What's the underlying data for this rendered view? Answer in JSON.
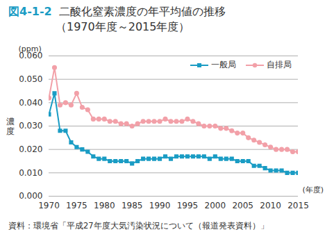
{
  "chart_data": {
    "type": "line",
    "figure_number": "図4-1-2",
    "title": "二酸化窒素濃度の年平均値の推移",
    "subtitle": "（1970年度～2015年度）",
    "y_unit": "(ppm)",
    "y_label": "濃度",
    "x_label": "(年度)",
    "source": "資料：環境省「平成27年度大気汚染状況について（報道発表資料）」",
    "x": [
      1970,
      1971,
      1972,
      1973,
      1974,
      1975,
      1976,
      1977,
      1978,
      1979,
      1980,
      1981,
      1982,
      1983,
      1984,
      1985,
      1986,
      1987,
      1988,
      1989,
      1990,
      1991,
      1992,
      1993,
      1994,
      1995,
      1996,
      1997,
      1998,
      1999,
      2000,
      2001,
      2002,
      2003,
      2004,
      2005,
      2006,
      2007,
      2008,
      2009,
      2010,
      2011,
      2012,
      2013,
      2014,
      2015
    ],
    "series": [
      {
        "name": "一般局",
        "color": "#1a9cc4",
        "marker": "square",
        "values": [
          0.035,
          0.044,
          0.028,
          0.028,
          0.023,
          0.021,
          0.02,
          0.019,
          0.017,
          0.016,
          0.016,
          0.015,
          0.015,
          0.015,
          0.015,
          0.014,
          0.015,
          0.016,
          0.016,
          0.016,
          0.016,
          0.017,
          0.016,
          0.017,
          0.017,
          0.017,
          0.017,
          0.017,
          0.017,
          0.016,
          0.017,
          0.016,
          0.016,
          0.016,
          0.015,
          0.015,
          0.015,
          0.013,
          0.013,
          0.012,
          0.011,
          0.011,
          0.011,
          0.01,
          0.01,
          0.01
        ]
      },
      {
        "name": "自排局",
        "color": "#f2a0a8",
        "marker": "circle",
        "values": [
          0.042,
          0.055,
          0.039,
          0.04,
          0.039,
          0.044,
          0.038,
          0.037,
          0.033,
          0.033,
          0.033,
          0.032,
          0.032,
          0.031,
          0.031,
          0.03,
          0.031,
          0.032,
          0.032,
          0.032,
          0.032,
          0.033,
          0.032,
          0.032,
          0.032,
          0.033,
          0.032,
          0.031,
          0.03,
          0.03,
          0.03,
          0.029,
          0.029,
          0.028,
          0.027,
          0.027,
          0.025,
          0.024,
          0.023,
          0.022,
          0.021,
          0.02,
          0.02,
          0.02,
          0.019,
          0.019
        ]
      }
    ],
    "xlim": [
      1970,
      2015
    ],
    "xticks": [
      1970,
      1975,
      1980,
      1985,
      1990,
      1995,
      2000,
      2005,
      2010,
      2015
    ],
    "ylim": [
      0,
      0.06
    ],
    "yticks": [
      {
        "value": 0,
        "label": "0.000"
      },
      {
        "value": 0.01,
        "label": "0.010"
      },
      {
        "value": 0.02,
        "label": "0.020"
      },
      {
        "value": 0.03,
        "label": "0.030"
      },
      {
        "value": 0.04,
        "label": "0.040"
      },
      {
        "value": 0.05,
        "label": "0.050"
      },
      {
        "value": 0.06,
        "label": "0.060"
      }
    ],
    "grid": true,
    "legend": "top-right"
  }
}
